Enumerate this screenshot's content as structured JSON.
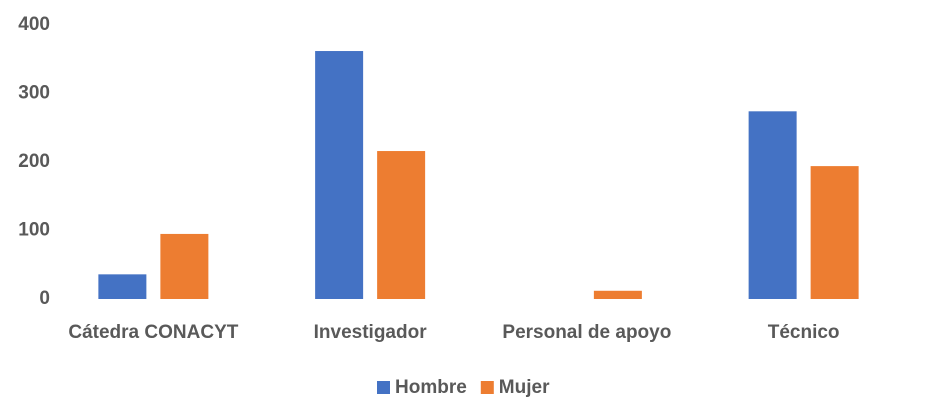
{
  "chart_data": {
    "type": "bar",
    "categories": [
      "Cátedra CONACYT",
      "Investigador",
      "Personal de apoyo",
      "Técnico"
    ],
    "series": [
      {
        "name": "Hombre",
        "color": "#4472c4",
        "values": [
          36,
          362,
          0,
          274
        ]
      },
      {
        "name": "Mujer",
        "color": "#ed7d31",
        "values": [
          95,
          216,
          12,
          194
        ]
      }
    ],
    "ylim": [
      0,
      400
    ],
    "yticks": [
      0,
      100,
      200,
      300,
      400
    ],
    "grid": false,
    "legend": "bottom"
  }
}
